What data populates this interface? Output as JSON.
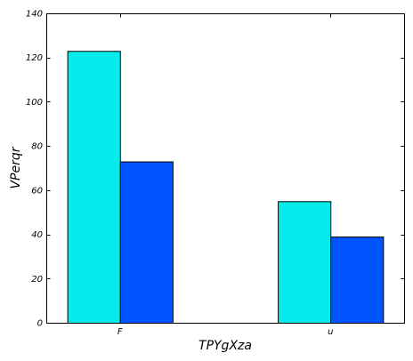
{
  "chart_data": {
    "type": "bar",
    "xlabel": "TPYgXza",
    "ylabel": "VPerqr",
    "categories": [
      "F",
      "u"
    ],
    "ylim": [
      0,
      140
    ],
    "yticks": [
      0,
      20,
      40,
      60,
      80,
      100,
      120,
      140
    ],
    "grid": false,
    "series": [
      {
        "values": [
          123,
          55
        ],
        "color": "#08ebed"
      },
      {
        "values": [
          73,
          39
        ],
        "color": "#0055ff"
      }
    ]
  }
}
